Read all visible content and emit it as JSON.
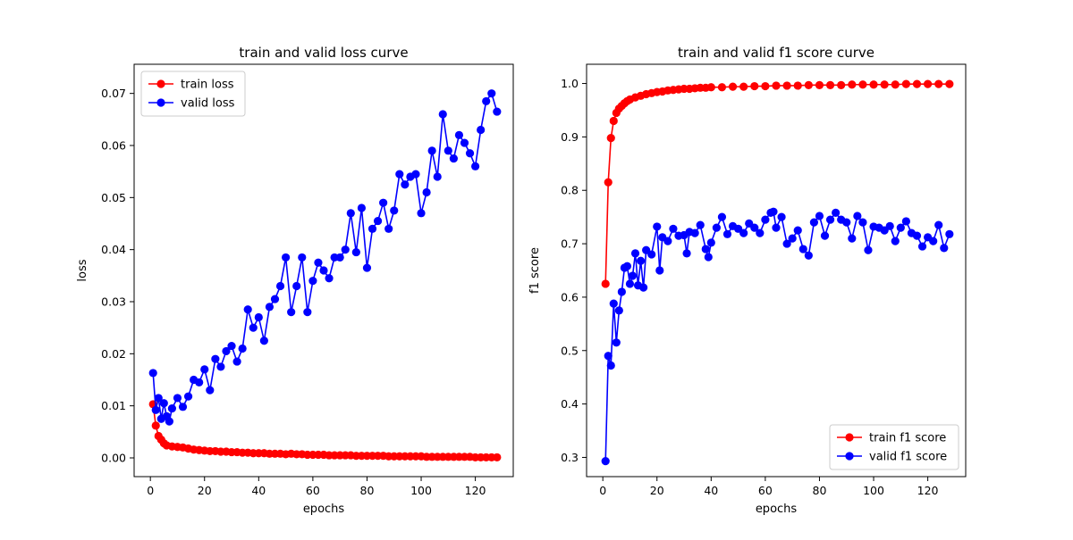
{
  "chart_data": [
    {
      "type": "line",
      "title": "train and valid loss curve",
      "xlabel": "epochs",
      "ylabel": "loss",
      "xlim": [
        -6,
        134
      ],
      "ylim": [
        -0.0036,
        0.0756
      ],
      "xticks": [
        0,
        20,
        40,
        60,
        80,
        100,
        120
      ],
      "yticks": [
        0.0,
        0.01,
        0.02,
        0.03,
        0.04,
        0.05,
        0.06,
        0.07
      ],
      "ytick_labels": [
        "0.00",
        "0.01",
        "0.02",
        "0.03",
        "0.04",
        "0.05",
        "0.06",
        "0.07"
      ],
      "legend_position": "upper-left",
      "series": [
        {
          "name": "train loss",
          "color": "#ff0000",
          "x": [
            1,
            2,
            3,
            4,
            5,
            6,
            8,
            10,
            12,
            14,
            16,
            18,
            20,
            22,
            24,
            26,
            28,
            30,
            32,
            34,
            36,
            38,
            40,
            42,
            44,
            46,
            48,
            50,
            52,
            54,
            56,
            58,
            60,
            62,
            64,
            66,
            68,
            70,
            72,
            74,
            76,
            78,
            80,
            82,
            84,
            86,
            88,
            90,
            92,
            94,
            96,
            98,
            100,
            102,
            104,
            106,
            108,
            110,
            112,
            114,
            116,
            118,
            120,
            122,
            124,
            126,
            128
          ],
          "y": [
            0.0103,
            0.0062,
            0.0042,
            0.0035,
            0.0028,
            0.0024,
            0.0022,
            0.0021,
            0.002,
            0.0018,
            0.0016,
            0.0015,
            0.0014,
            0.0013,
            0.0013,
            0.0012,
            0.0012,
            0.0011,
            0.0011,
            0.001,
            0.001,
            0.0009,
            0.0009,
            0.0009,
            0.0008,
            0.0008,
            0.0008,
            0.0007,
            0.0008,
            0.0007,
            0.0007,
            0.0006,
            0.0006,
            0.0006,
            0.0006,
            0.0005,
            0.0005,
            0.0005,
            0.0005,
            0.0005,
            0.0004,
            0.0004,
            0.0004,
            0.0004,
            0.0004,
            0.0004,
            0.0003,
            0.0003,
            0.0003,
            0.0003,
            0.0003,
            0.0003,
            0.0003,
            0.0002,
            0.0002,
            0.0002,
            0.0002,
            0.0002,
            0.0002,
            0.0002,
            0.0002,
            0.0002,
            0.0001,
            0.0001,
            0.0001,
            0.0001,
            0.0001
          ]
        },
        {
          "name": "valid loss",
          "color": "#0000ff",
          "x": [
            1,
            2,
            3,
            4,
            5,
            6,
            7,
            8,
            10,
            12,
            14,
            16,
            18,
            20,
            22,
            24,
            26,
            28,
            30,
            32,
            34,
            36,
            38,
            40,
            42,
            44,
            46,
            48,
            50,
            52,
            54,
            56,
            58,
            60,
            62,
            64,
            66,
            68,
            70,
            72,
            74,
            76,
            78,
            80,
            82,
            84,
            86,
            88,
            90,
            92,
            94,
            96,
            98,
            100,
            102,
            104,
            106,
            108,
            110,
            112,
            114,
            116,
            118,
            120,
            122,
            124,
            126,
            128
          ],
          "y": [
            0.0163,
            0.0092,
            0.0115,
            0.0075,
            0.0105,
            0.008,
            0.007,
            0.0095,
            0.0115,
            0.0098,
            0.0118,
            0.015,
            0.0145,
            0.017,
            0.013,
            0.019,
            0.0175,
            0.0205,
            0.0215,
            0.0185,
            0.021,
            0.0285,
            0.025,
            0.027,
            0.0225,
            0.029,
            0.0305,
            0.033,
            0.0385,
            0.028,
            0.033,
            0.0385,
            0.028,
            0.034,
            0.0375,
            0.036,
            0.0345,
            0.0385,
            0.0385,
            0.04,
            0.047,
            0.0395,
            0.048,
            0.0365,
            0.044,
            0.0455,
            0.049,
            0.044,
            0.0475,
            0.0545,
            0.0525,
            0.054,
            0.0545,
            0.047,
            0.051,
            0.059,
            0.054,
            0.066,
            0.059,
            0.0575,
            0.062,
            0.0605,
            0.0585,
            0.056,
            0.063,
            0.0685,
            0.07,
            0.0665
          ]
        }
      ]
    },
    {
      "type": "line",
      "title": "train and valid f1 score curve",
      "xlabel": "epochs",
      "ylabel": "f1 score",
      "xlim": [
        -6,
        134
      ],
      "ylim": [
        0.264,
        1.036
      ],
      "xticks": [
        0,
        20,
        40,
        60,
        80,
        100,
        120
      ],
      "yticks": [
        0.3,
        0.4,
        0.5,
        0.6,
        0.7,
        0.8,
        0.9,
        1.0
      ],
      "ytick_labels": [
        "0.3",
        "0.4",
        "0.5",
        "0.6",
        "0.7",
        "0.8",
        "0.9",
        "1.0"
      ],
      "legend_position": "lower-right",
      "series": [
        {
          "name": "train f1 score",
          "color": "#ff0000",
          "x": [
            1,
            2,
            3,
            4,
            5,
            6,
            7,
            8,
            9,
            10,
            12,
            14,
            16,
            18,
            20,
            22,
            24,
            26,
            28,
            30,
            32,
            34,
            36,
            38,
            40,
            44,
            48,
            52,
            56,
            60,
            64,
            68,
            72,
            76,
            80,
            84,
            88,
            92,
            96,
            100,
            104,
            108,
            112,
            116,
            120,
            124,
            128
          ],
          "y": [
            0.625,
            0.815,
            0.898,
            0.93,
            0.945,
            0.953,
            0.958,
            0.963,
            0.967,
            0.97,
            0.974,
            0.977,
            0.98,
            0.982,
            0.984,
            0.985,
            0.987,
            0.988,
            0.989,
            0.99,
            0.99,
            0.991,
            0.992,
            0.992,
            0.993,
            0.993,
            0.994,
            0.994,
            0.995,
            0.995,
            0.996,
            0.996,
            0.996,
            0.997,
            0.997,
            0.997,
            0.997,
            0.998,
            0.998,
            0.998,
            0.998,
            0.998,
            0.999,
            0.999,
            0.999,
            0.999,
            0.999
          ]
        },
        {
          "name": "valid f1 score",
          "color": "#0000ff",
          "x": [
            1,
            2,
            3,
            4,
            5,
            6,
            7,
            8,
            9,
            10,
            11,
            12,
            13,
            14,
            15,
            16,
            18,
            20,
            21,
            22,
            24,
            26,
            28,
            30,
            31,
            32,
            34,
            36,
            38,
            39,
            40,
            42,
            44,
            46,
            48,
            50,
            52,
            54,
            56,
            58,
            60,
            62,
            63,
            64,
            66,
            68,
            70,
            72,
            74,
            76,
            78,
            80,
            82,
            84,
            86,
            88,
            90,
            92,
            94,
            96,
            98,
            100,
            102,
            104,
            106,
            108,
            110,
            112,
            114,
            116,
            118,
            120,
            122,
            124,
            126,
            128
          ],
          "y": [
            0.293,
            0.49,
            0.472,
            0.588,
            0.515,
            0.575,
            0.61,
            0.655,
            0.658,
            0.625,
            0.64,
            0.682,
            0.622,
            0.668,
            0.618,
            0.688,
            0.68,
            0.732,
            0.65,
            0.712,
            0.705,
            0.728,
            0.715,
            0.716,
            0.682,
            0.722,
            0.72,
            0.735,
            0.69,
            0.675,
            0.702,
            0.73,
            0.75,
            0.718,
            0.733,
            0.728,
            0.72,
            0.738,
            0.73,
            0.72,
            0.745,
            0.758,
            0.76,
            0.73,
            0.75,
            0.7,
            0.71,
            0.725,
            0.69,
            0.678,
            0.74,
            0.752,
            0.715,
            0.745,
            0.758,
            0.745,
            0.74,
            0.71,
            0.752,
            0.74,
            0.688,
            0.732,
            0.73,
            0.725,
            0.733,
            0.705,
            0.73,
            0.742,
            0.72,
            0.715,
            0.695,
            0.712,
            0.705,
            0.735,
            0.692,
            0.718
          ]
        }
      ]
    }
  ]
}
